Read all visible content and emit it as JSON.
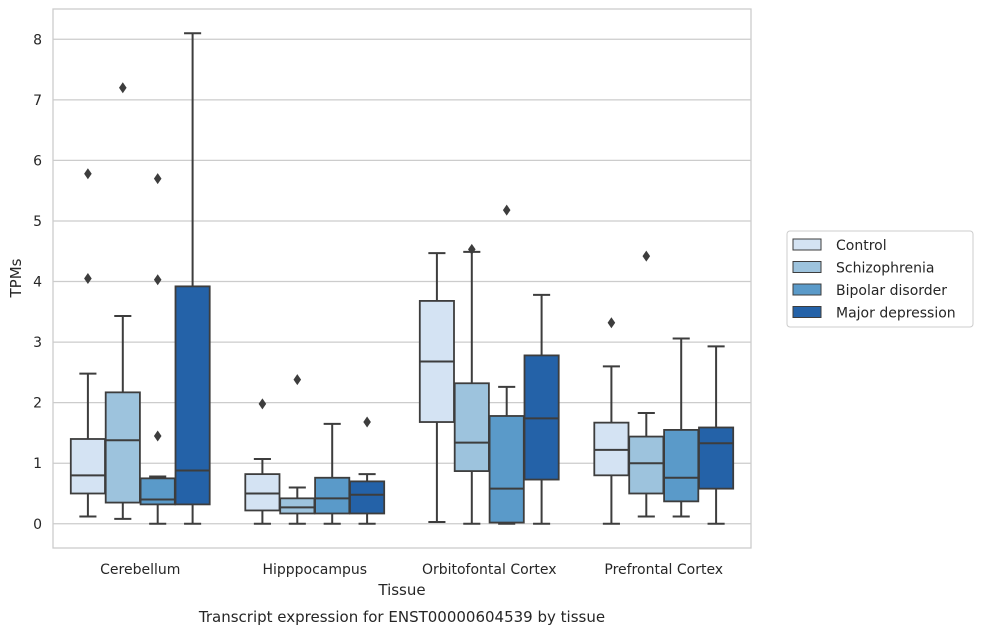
{
  "chart_data": {
    "type": "box",
    "xlabel": "Tissue",
    "ylabel": "TPMs",
    "caption": "Transcript expression for ENST00000604539 by tissue",
    "ylim": [
      -0.4,
      8.5
    ],
    "yticks": [
      0,
      1,
      2,
      3,
      4,
      5,
      6,
      7,
      8
    ],
    "grid": "horizontal",
    "legend_position": "right",
    "categories": [
      "Cerebellum",
      "Hipppocampus",
      "Orbitofontal Cortex",
      "Prefrontal Cortex"
    ],
    "series": [
      {
        "name": "Control",
        "color": "#d4e3f3",
        "boxes": [
          {
            "q1": 0.5,
            "median": 0.8,
            "q3": 1.4,
            "whisker_low": 0.12,
            "whisker_high": 2.48,
            "outliers": [
              4.05,
              5.78
            ]
          },
          {
            "q1": 0.22,
            "median": 0.5,
            "q3": 0.82,
            "whisker_low": 0.0,
            "whisker_high": 1.07,
            "outliers": [
              1.98
            ]
          },
          {
            "q1": 1.68,
            "median": 2.68,
            "q3": 3.68,
            "whisker_low": 0.03,
            "whisker_high": 4.47,
            "outliers": []
          },
          {
            "q1": 0.8,
            "median": 1.22,
            "q3": 1.67,
            "whisker_low": 0.0,
            "whisker_high": 2.6,
            "outliers": [
              3.32
            ]
          }
        ]
      },
      {
        "name": "Schizophrenia",
        "color": "#9dc3dd",
        "boxes": [
          {
            "q1": 0.35,
            "median": 1.38,
            "q3": 2.17,
            "whisker_low": 0.08,
            "whisker_high": 3.43,
            "outliers": [
              7.2
            ]
          },
          {
            "q1": 0.17,
            "median": 0.27,
            "q3": 0.42,
            "whisker_low": 0.0,
            "whisker_high": 0.6,
            "outliers": [
              2.38
            ]
          },
          {
            "q1": 0.87,
            "median": 1.34,
            "q3": 2.32,
            "whisker_low": 0.0,
            "whisker_high": 4.49,
            "outliers": [
              4.53
            ]
          },
          {
            "q1": 0.5,
            "median": 1.0,
            "q3": 1.44,
            "whisker_low": 0.12,
            "whisker_high": 1.83,
            "outliers": [
              4.42
            ]
          }
        ]
      },
      {
        "name": "Bipolar disorder",
        "color": "#5a9ac9",
        "boxes": [
          {
            "q1": 0.32,
            "median": 0.4,
            "q3": 0.75,
            "whisker_low": 0.0,
            "whisker_high": 0.78,
            "outliers": [
              1.45,
              4.03,
              5.7
            ]
          },
          {
            "q1": 0.17,
            "median": 0.42,
            "q3": 0.76,
            "whisker_low": 0.0,
            "whisker_high": 1.65,
            "outliers": []
          },
          {
            "q1": 0.02,
            "median": 0.58,
            "q3": 1.78,
            "whisker_low": 0.0,
            "whisker_high": 2.26,
            "outliers": [
              5.18
            ]
          },
          {
            "q1": 0.37,
            "median": 0.76,
            "q3": 1.55,
            "whisker_low": 0.12,
            "whisker_high": 3.06,
            "outliers": []
          }
        ]
      },
      {
        "name": "Major depression",
        "color": "#2462a8",
        "boxes": [
          {
            "q1": 0.32,
            "median": 0.88,
            "q3": 3.92,
            "whisker_low": 0.0,
            "whisker_high": 8.1,
            "outliers": []
          },
          {
            "q1": 0.17,
            "median": 0.48,
            "q3": 0.7,
            "whisker_low": 0.0,
            "whisker_high": 0.82,
            "outliers": [
              1.68
            ]
          },
          {
            "q1": 0.73,
            "median": 1.74,
            "q3": 2.78,
            "whisker_low": 0.0,
            "whisker_high": 3.78,
            "outliers": []
          },
          {
            "q1": 0.58,
            "median": 1.33,
            "q3": 1.59,
            "whisker_low": 0.0,
            "whisker_high": 2.93,
            "outliers": []
          }
        ]
      }
    ]
  }
}
